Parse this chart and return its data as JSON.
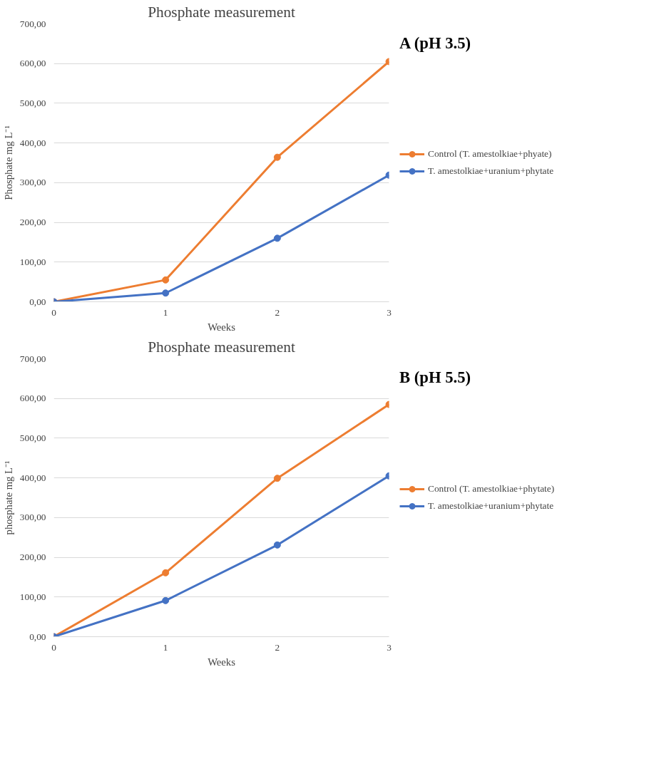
{
  "chart_data": [
    {
      "type": "line",
      "title": "Phosphate measurement",
      "xlabel": "Weeks",
      "ylabel": "Phosphate mg L⁻¹",
      "annotations": [
        "A (pH 3.5)"
      ],
      "x": [
        0,
        1,
        2,
        3
      ],
      "xlim": [
        0,
        3
      ],
      "xticks": [
        0,
        1,
        2,
        3
      ],
      "ylim": [
        0,
        700
      ],
      "yticks": [
        {
          "value": 0,
          "label": "0,00"
        },
        {
          "value": 100,
          "label": "100,00"
        },
        {
          "value": 200,
          "label": "200,00"
        },
        {
          "value": 300,
          "label": "300,00"
        },
        {
          "value": 400,
          "label": "400,00"
        },
        {
          "value": 500,
          "label": "500,00"
        },
        {
          "value": 600,
          "label": "600,00"
        },
        {
          "value": 700,
          "label": "700,00"
        }
      ],
      "grid": "y",
      "legend": "right",
      "marker": "circle",
      "line_style": "solid",
      "series": [
        {
          "name": "Control (T. amestolkiae+phyate)",
          "color": "#ed7d31",
          "values": [
            0,
            55,
            364,
            605
          ]
        },
        {
          "name": "T. amestolkiae+uranium+phytate",
          "color": "#4472c4",
          "values": [
            0,
            22,
            160,
            319
          ]
        }
      ]
    },
    {
      "type": "line",
      "title": "Phosphate measurement",
      "xlabel": "Weeks",
      "ylabel": "phosphate mg L⁻¹",
      "annotations": [
        "B (pH 5.5)"
      ],
      "x": [
        0,
        1,
        2,
        3
      ],
      "xlim": [
        0,
        3
      ],
      "xticks": [
        0,
        1,
        2,
        3
      ],
      "ylim": [
        0,
        700
      ],
      "yticks": [
        {
          "value": 0,
          "label": "0,00"
        },
        {
          "value": 100,
          "label": "100,00"
        },
        {
          "value": 200,
          "label": "200,00"
        },
        {
          "value": 300,
          "label": "300,00"
        },
        {
          "value": 400,
          "label": "400,00"
        },
        {
          "value": 500,
          "label": "500,00"
        },
        {
          "value": 600,
          "label": "600,00"
        },
        {
          "value": 700,
          "label": "700,00"
        }
      ],
      "grid": "y",
      "legend": "right",
      "marker": "circle",
      "line_style": "solid",
      "series": [
        {
          "name": "Control (T. amestolkiae+phytate)",
          "color": "#ed7d31",
          "values": [
            0,
            161,
            399,
            585
          ]
        },
        {
          "name": "T. amestolkiae+uranium+phytate",
          "color": "#4472c4",
          "values": [
            0,
            91,
            231,
            405
          ]
        }
      ]
    }
  ]
}
